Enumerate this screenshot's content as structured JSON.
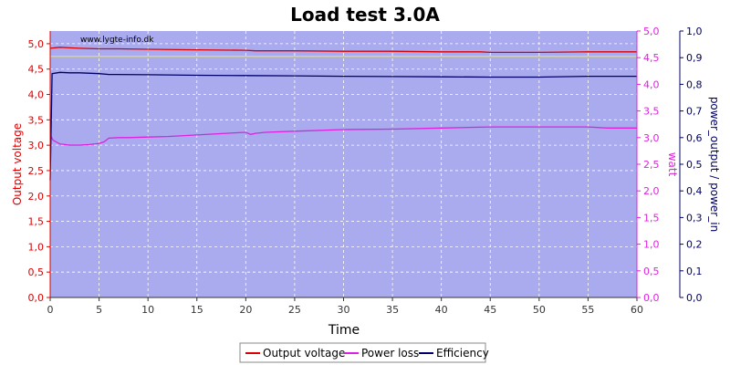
{
  "chart_data": {
    "type": "line",
    "title": "Load test 3.0A",
    "watermark": "www.lygte-info.dk",
    "xlabel": "Time",
    "ylabel_left": "Output voltage",
    "ylabel_right1": "watt",
    "ylabel_right2": "power_output / power_in",
    "xlim": [
      0,
      60
    ],
    "ylim_left": [
      0,
      5.25
    ],
    "ylim_right1": [
      0,
      5.0
    ],
    "ylim_right2": [
      0,
      1.0
    ],
    "x_ticks": [
      "0",
      "5",
      "10",
      "15",
      "20",
      "25",
      "30",
      "35",
      "40",
      "45",
      "50",
      "55",
      "60"
    ],
    "y_ticks_left": [
      "0,0",
      "0,5",
      "1,0",
      "1,5",
      "2,0",
      "2,5",
      "3,0",
      "3,5",
      "4,0",
      "4,5",
      "5,0"
    ],
    "y_ticks_right1": [
      "0,0",
      "0,5",
      "1,0",
      "1,5",
      "2,0",
      "2,5",
      "3,0",
      "3,5",
      "4,0",
      "4,5",
      "5,0"
    ],
    "y_ticks_right2": [
      "0,0",
      "0,1",
      "0,2",
      "0,3",
      "0,4",
      "0,5",
      "0,6",
      "0,7",
      "0,8",
      "0,9",
      "1,0"
    ],
    "grid": true,
    "legend_position": "bottom",
    "colors": {
      "plot_bg": "#aaaaee",
      "output_voltage": "#dd0000",
      "power_loss": "#dd22dd",
      "efficiency": "#000066",
      "reference_line": "#e8e840",
      "left_axis": "#dd0000",
      "right1_axis": "#dd22dd",
      "right2_axis": "#000066"
    },
    "reference_line": {
      "name": "",
      "value": 4.75
    },
    "series": [
      {
        "name": "Output voltage",
        "axis": "left",
        "x": [
          0,
          1,
          2,
          3,
          5,
          7,
          10,
          15,
          20,
          21,
          25,
          30,
          35,
          40,
          44,
          45,
          50,
          55,
          60
        ],
        "y": [
          4.91,
          4.93,
          4.92,
          4.91,
          4.9,
          4.9,
          4.89,
          4.88,
          4.87,
          4.86,
          4.86,
          4.85,
          4.85,
          4.84,
          4.84,
          4.83,
          4.83,
          4.84,
          4.84
        ]
      },
      {
        "name": "Power loss",
        "axis": "right1",
        "x": [
          0,
          0.3,
          1,
          2,
          3,
          4,
          5,
          5.5,
          6,
          7,
          8,
          10,
          12,
          15,
          18,
          20,
          20.5,
          21,
          22,
          25,
          30,
          35,
          40,
          45,
          50,
          55,
          57,
          60
        ],
        "y": [
          3.05,
          2.95,
          2.88,
          2.86,
          2.86,
          2.87,
          2.89,
          2.92,
          2.99,
          3.0,
          3.0,
          3.01,
          3.02,
          3.05,
          3.08,
          3.1,
          3.06,
          3.08,
          3.1,
          3.12,
          3.15,
          3.16,
          3.18,
          3.2,
          3.2,
          3.2,
          3.18,
          3.18
        ]
      },
      {
        "name": "Efficiency",
        "axis": "right2",
        "x": [
          0,
          0.2,
          1,
          2,
          3,
          5,
          6,
          10,
          15,
          20,
          25,
          30,
          35,
          40,
          45,
          50,
          55,
          60
        ],
        "y": [
          0.44,
          0.84,
          0.845,
          0.843,
          0.843,
          0.84,
          0.837,
          0.836,
          0.834,
          0.833,
          0.832,
          0.83,
          0.829,
          0.828,
          0.827,
          0.827,
          0.83,
          0.83
        ]
      }
    ]
  }
}
